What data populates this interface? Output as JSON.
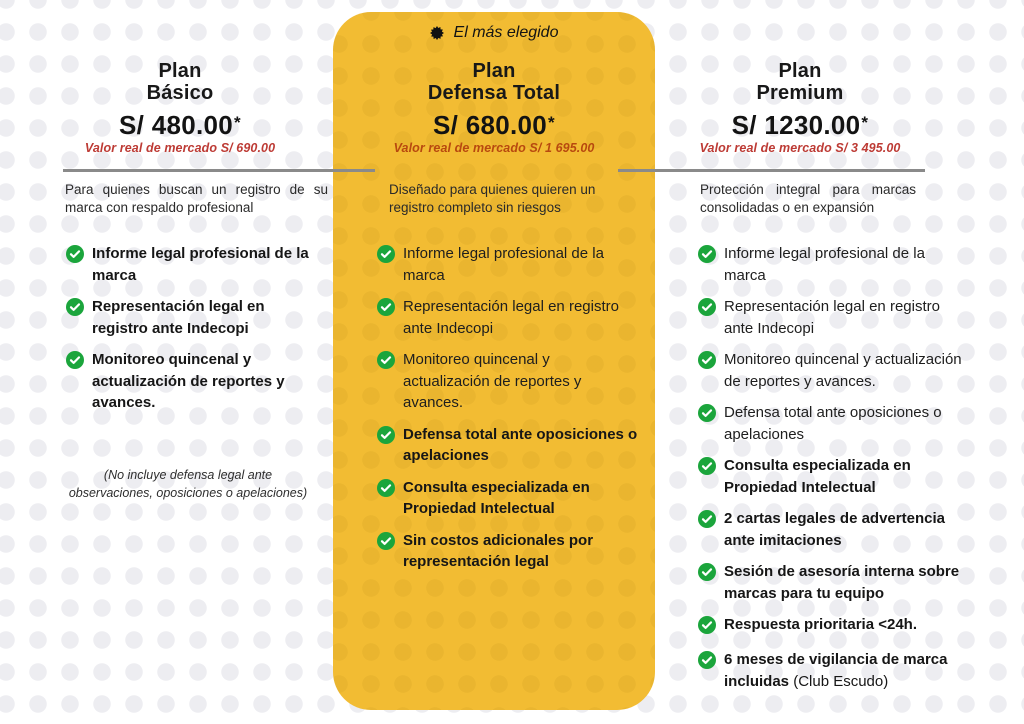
{
  "colors": {
    "highlight_card": "#F2BC33",
    "check_green": "#1BA53C",
    "market_red": "#BD3B35",
    "market_red_on_yellow": "#B8490F",
    "divider_gray": "#8A8A8A",
    "text_dark": "#1F1F1F"
  },
  "badge": {
    "label": "El más elegido",
    "icon": "badge-star-icon"
  },
  "plans": [
    {
      "id": "basico",
      "title_line1": "Plan",
      "title_line2": "Básico",
      "price": "S/ 480.00",
      "asterisk": "*",
      "market_value": "Valor real de mercado S/ 690.00",
      "description": "Para quienes buscan un registro de su marca con respaldo profesional",
      "features": [
        {
          "text": "Informe legal profesional de la marca",
          "bold": true
        },
        {
          "text": "Representación legal en registro ante Indecopi",
          "bold": true
        },
        {
          "text": "Monitoreo quincenal y actualización de reportes y avances.",
          "bold": true
        }
      ],
      "note": "(No incluye defensa legal ante observaciones, oposiciones o apelaciones)"
    },
    {
      "id": "defensa-total",
      "highlighted": true,
      "title_line1": "Plan",
      "title_line2": "Defensa Total",
      "price": "S/ 680.00",
      "asterisk": "*",
      "market_value": "Valor real de mercado S/ 1 695.00",
      "description": "Diseñado para quienes quieren un registro completo sin riesgos",
      "features": [
        {
          "text": "Informe legal profesional de la marca",
          "bold": false
        },
        {
          "text": "Representación legal en registro ante Indecopi",
          "bold": false
        },
        {
          "text": "Monitoreo quincenal y actualización de reportes y avances.",
          "bold": false
        },
        {
          "text": "Defensa total ante oposiciones o apelaciones",
          "bold": true
        },
        {
          "text": "Consulta especializada en Propiedad Intelectual",
          "bold": true
        },
        {
          "text": "Sin costos adicionales por representación legal",
          "bold": true
        }
      ]
    },
    {
      "id": "premium",
      "title_line1": "Plan",
      "title_line2": "Premium",
      "price": "S/ 1230.00",
      "asterisk": "*",
      "market_value": "Valor real de mercado S/ 3 495.00",
      "description": "Protección integral para marcas consolidadas o en expansión",
      "features": [
        {
          "text": "Informe legal profesional de la marca",
          "bold": false
        },
        {
          "text": "Representación legal en registro ante Indecopi",
          "bold": false
        },
        {
          "text": "Monitoreo quincenal y actualización de reportes y avances.",
          "bold": false
        },
        {
          "text": "Defensa total ante oposiciones o apelaciones",
          "bold": false
        },
        {
          "text": "Consulta especializada en Propiedad Intelectual",
          "bold": true
        },
        {
          "text": "2 cartas legales de advertencia ante imitaciones",
          "bold": true
        },
        {
          "text": "Sesión de asesoría interna sobre marcas para tu equipo",
          "bold": true
        },
        {
          "text": "Respuesta prioritaria <24h.",
          "bold": true
        },
        {
          "text": "6 meses de vigilancia de marca incluidas",
          "bold": true,
          "suffix": " (Club Escudo)"
        }
      ]
    }
  ]
}
